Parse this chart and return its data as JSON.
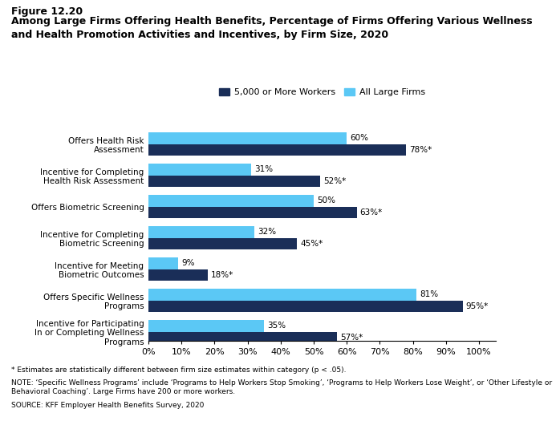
{
  "title_line1": "Figure 12.20",
  "title_line2": "Among Large Firms Offering Health Benefits, Percentage of Firms Offering Various Wellness\nand Health Promotion Activities and Incentives, by Firm Size, 2020",
  "categories": [
    "Offers Health Risk\nAssessment",
    "Incentive for Completing\nHealth Risk Assessment",
    "Offers Biometric Screening",
    "Incentive for Completing\nBiometric Screening",
    "Incentive for Meeting\nBiometric Outcomes",
    "Offers Specific Wellness\nPrograms",
    "Incentive for Participating\nIn or Completing Wellness\nPrograms"
  ],
  "dark_values": [
    78,
    52,
    63,
    45,
    18,
    95,
    57
  ],
  "light_values": [
    60,
    31,
    50,
    32,
    9,
    81,
    35
  ],
  "dark_labels": [
    "78%*",
    "52%*",
    "63%*",
    "45%*",
    "18%*",
    "95%*",
    "57%*"
  ],
  "light_labels": [
    "60%",
    "31%",
    "50%",
    "32%",
    "9%",
    "81%",
    "35%"
  ],
  "dark_color": "#1a2e58",
  "light_color": "#5bc8f5",
  "legend_labels": [
    "5,000 or More Workers",
    "All Large Firms"
  ],
  "xlim": [
    0,
    100
  ],
  "xtick_labels": [
    "0%",
    "10%",
    "20%",
    "30%",
    "40%",
    "50%",
    "60%",
    "70%",
    "80%",
    "90%",
    "100%"
  ],
  "xtick_values": [
    0,
    10,
    20,
    30,
    40,
    50,
    60,
    70,
    80,
    90,
    100
  ],
  "footnote1": "* Estimates are statistically different between firm size estimates within category (p < .05).",
  "footnote2": "NOTE: ‘Specific Wellness Programs’ include ‘Programs to Help Workers Stop Smoking’, ‘Programs to Help Workers Lose Weight’, or ‘Other Lifestyle or\nBehavioral Coaching’. Large Firms have 200 or more workers.",
  "footnote3": "SOURCE: KFF Employer Health Benefits Survey, 2020",
  "bar_height": 0.38,
  "background_color": "#ffffff"
}
